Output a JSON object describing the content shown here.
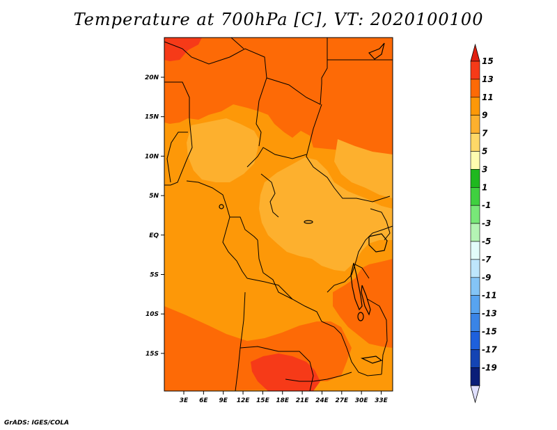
{
  "title": "Temperature at 700hPa [C], VT: 2020100100",
  "footer": "GrADS: IGES/COLA",
  "map": {
    "lon_labels": [
      "3E",
      "6E",
      "9E",
      "12E",
      "15E",
      "18E",
      "21E",
      "24E",
      "27E",
      "30E",
      "33E"
    ],
    "lat_labels": [
      "20N",
      "15N",
      "10N",
      "5N",
      "EQ",
      "5S",
      "10S",
      "15S"
    ]
  },
  "colorbar": {
    "labels": [
      "15",
      "13",
      "11",
      "9",
      "7",
      "5",
      "3",
      "1",
      "-1",
      "-3",
      "-5",
      "-7",
      "-9",
      "-11",
      "-13",
      "-15",
      "-17",
      "-19"
    ],
    "top_arrow_color": "#e02010",
    "bottom_arrow_color": "#e0e0ff",
    "box_colors": [
      "#f63a18",
      "#fd6a06",
      "#fd9808",
      "#fdb02e",
      "#fed868",
      "#fefcb0",
      "#1fb81f",
      "#3fd03f",
      "#78e878",
      "#b4f4b4",
      "#e2fcfa",
      "#bee6fc",
      "#84c4f6",
      "#58a4f0",
      "#3a84e6",
      "#1e60dc",
      "#1444b4",
      "#0a1e78"
    ]
  },
  "palette": {
    "c15": "#f63a18",
    "c13": "#fd6a06",
    "c11": "#fd9808",
    "c9": "#fdb02e",
    "c7": "#fed868",
    "c5": "#fefcb0"
  }
}
